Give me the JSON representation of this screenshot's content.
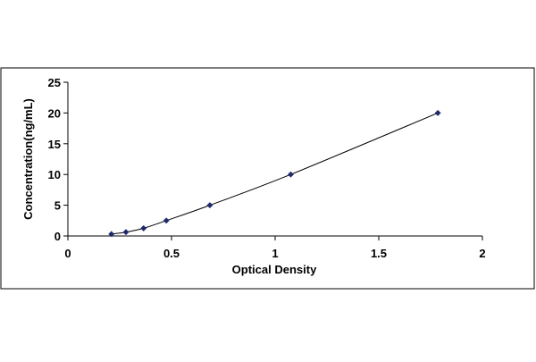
{
  "chart_data": {
    "type": "scatter",
    "title": "",
    "xlabel": "Optical Density",
    "ylabel": "Concentration(ng/mL)",
    "xlim": [
      0,
      2
    ],
    "ylim": [
      0,
      25
    ],
    "x_ticks": [
      "0",
      "0.5",
      "1",
      "1.5",
      "2"
    ],
    "y_ticks": [
      "0",
      "5",
      "10",
      "15",
      "20",
      "25"
    ],
    "grid": false,
    "legend": "none",
    "trendline": "smooth curve through points",
    "series": [
      {
        "x": [
          0.21,
          0.28,
          0.365,
          0.475,
          0.685,
          1.075,
          1.785
        ],
        "y": [
          0.3125,
          0.625,
          1.25,
          2.5,
          5,
          10,
          20
        ],
        "marker": "diamond",
        "color": "#1f2a6b"
      }
    ]
  }
}
